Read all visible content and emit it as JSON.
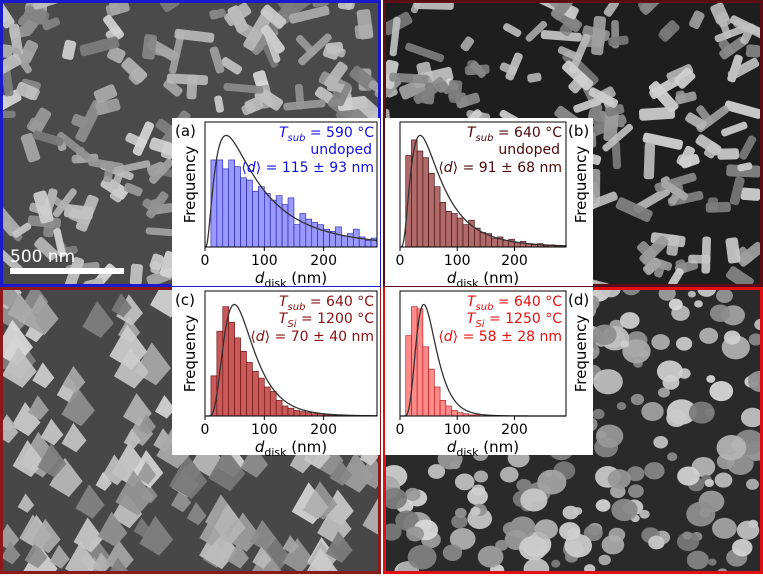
{
  "scale_bar": {
    "label": "500 nm"
  },
  "panels": [
    {
      "id": "a",
      "border_color": "#1a1acc",
      "text_color": "#1010e0",
      "bar_fill": "#9999ff",
      "bar_stroke": "#1a1aaa",
      "tex_seed": 3,
      "tex_style": "worm",
      "annotation": {
        "tsub": "590 °C",
        "dopant_line": "undoped",
        "d_value": "115 ± 93 nm"
      },
      "dopant_kind": "text"
    },
    {
      "id": "b",
      "border_color": "#5a0d12",
      "text_color": "#4a0a0a",
      "bar_fill": "#b06a6a",
      "bar_stroke": "#3a0808",
      "tex_seed": 7,
      "tex_style": "dark",
      "annotation": {
        "tsub": "640 °C",
        "dopant_line": "undoped",
        "d_value": "91 ± 68 nm"
      },
      "dopant_kind": "text"
    },
    {
      "id": "c",
      "border_color": "#8b1a1a",
      "text_color": "#8b1010",
      "bar_fill": "#c85a5a",
      "bar_stroke": "#6a0c0c",
      "tex_seed": 11,
      "tex_style": "pyramid",
      "annotation": {
        "tsub": "640 °C",
        "tsi": "1200 °C",
        "d_value": "70 ± 40 nm"
      },
      "dopant_kind": "tsi"
    },
    {
      "id": "d",
      "border_color": "#e01010",
      "text_color": "#e81010",
      "bar_fill": "#ff8a8a",
      "bar_stroke": "#b01010",
      "tex_seed": 19,
      "tex_style": "grain",
      "annotation": {
        "tsub": "640 °C",
        "tsi": "1250 °C",
        "d_value": "58 ± 28 nm"
      },
      "dopant_kind": "tsi"
    }
  ],
  "chart_data": [
    {
      "type": "bar",
      "panel": "(a)",
      "ylabel": "Frequency",
      "xlabel": "d_disk (nm)",
      "xlim": [
        0,
        290
      ],
      "ylim": [
        0,
        1.12
      ],
      "xticks": [
        0,
        100,
        200
      ],
      "bin_width": 10,
      "bins_start": 10,
      "values": [
        0.78,
        0.78,
        0.7,
        0.78,
        0.72,
        0.62,
        0.6,
        0.5,
        0.54,
        0.48,
        0.42,
        0.46,
        0.38,
        0.44,
        0.2,
        0.3,
        0.25,
        0.22,
        0.2,
        0.16,
        0.14,
        0.18,
        0.1,
        0.12,
        0.16,
        0.09,
        0.06,
        0.08
      ],
      "fit": {
        "type": "lognormal",
        "mu": 4.35,
        "sigma": 0.88,
        "peak": 1.0
      }
    },
    {
      "type": "bar",
      "panel": "(b)",
      "ylabel": "Frequency",
      "xlabel": "d_disk (nm)",
      "xlim": [
        0,
        290
      ],
      "ylim": [
        0,
        1.12
      ],
      "xticks": [
        0,
        100,
        200
      ],
      "bin_width": 10,
      "bins_start": 10,
      "values": [
        0.82,
        0.96,
        0.86,
        0.8,
        0.66,
        0.54,
        0.4,
        0.32,
        0.3,
        0.26,
        0.2,
        0.24,
        0.17,
        0.13,
        0.12,
        0.08,
        0.09,
        0.06,
        0.07,
        0.04,
        0.05,
        0.03,
        0.02,
        0.03,
        0.01,
        0.02,
        0.01,
        0.01
      ],
      "fit": {
        "type": "lognormal",
        "mu": 4.05,
        "sigma": 0.7,
        "peak": 1.0
      }
    },
    {
      "type": "bar",
      "panel": "(c)",
      "ylabel": "Frequency",
      "xlabel": "d_disk (nm)",
      "xlim": [
        0,
        290
      ],
      "ylim": [
        0,
        1.12
      ],
      "xticks": [
        0,
        100,
        200
      ],
      "bin_width": 10,
      "bins_start": 10,
      "values": [
        0.36,
        0.76,
        0.98,
        0.84,
        0.7,
        0.58,
        0.48,
        0.4,
        0.34,
        0.26,
        0.22,
        0.14,
        0.09,
        0.07,
        0.05,
        0.04,
        0.03,
        0.02,
        0.02,
        0.01,
        0.01,
        0.01,
        0.0,
        0.0,
        0.0,
        0.0,
        0.0,
        0.0
      ],
      "fit": {
        "type": "lognormal",
        "mu": 4.15,
        "sigma": 0.5,
        "peak": 1.0
      }
    },
    {
      "type": "bar",
      "panel": "(d)",
      "ylabel": "Frequency",
      "xlabel": "d_disk (nm)",
      "xlim": [
        0,
        290
      ],
      "ylim": [
        0,
        1.12
      ],
      "xticks": [
        0,
        100,
        200
      ],
      "bin_width": 10,
      "bins_start": 10,
      "values": [
        0.72,
        0.98,
        0.96,
        0.62,
        0.42,
        0.26,
        0.14,
        0.09,
        0.05,
        0.03,
        0.02,
        0.01,
        0.01,
        0.0,
        0.0,
        0.0,
        0.0,
        0.0,
        0.0,
        0.0,
        0.0,
        0.0,
        0.0,
        0.0,
        0.0,
        0.0,
        0.0,
        0.0
      ],
      "fit": {
        "type": "lognormal",
        "mu": 3.9,
        "sigma": 0.42,
        "peak": 1.0
      }
    }
  ]
}
